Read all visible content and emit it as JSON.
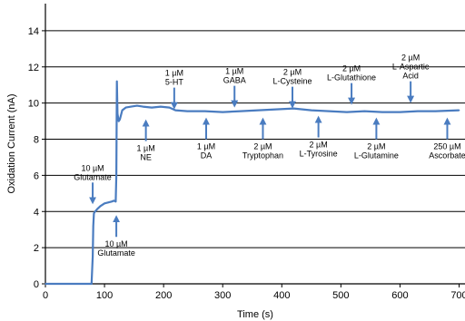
{
  "chart_data": {
    "type": "line",
    "title": "",
    "xlabel": "Time (s)",
    "ylabel": "Oxidation Current (nA)",
    "xlim": [
      0,
      710
    ],
    "ylim": [
      0,
      15.5
    ],
    "xticks": [
      0,
      100,
      200,
      300,
      400,
      500,
      600,
      700
    ],
    "xtick_labels": [
      "0",
      "100",
      "200",
      "300",
      "400",
      "500",
      "600",
      "700"
    ],
    "yticks": [
      0,
      2,
      4,
      6,
      8,
      10,
      12,
      14
    ],
    "ytick_labels": [
      "0",
      "2",
      "4",
      "6",
      "8",
      "10",
      "12",
      "14"
    ],
    "grid": "horizontal",
    "series": [
      {
        "color": "#4a7cc0",
        "x": [
          0,
          78,
          80,
          81,
          82,
          84,
          88,
          93,
          100,
          106,
          112,
          116,
          119,
          120,
          121,
          122,
          124,
          126,
          130,
          136,
          145,
          155,
          165,
          180,
          195,
          210,
          220,
          240,
          270,
          300,
          330,
          360,
          390,
          420,
          450,
          480,
          510,
          540,
          570,
          600,
          630,
          660,
          700
        ],
        "y": [
          0,
          0,
          1.5,
          3.2,
          3.9,
          4.0,
          4.15,
          4.3,
          4.45,
          4.5,
          4.55,
          4.6,
          4.55,
          6.0,
          11.2,
          9.4,
          9.0,
          9.1,
          9.6,
          9.75,
          9.8,
          9.85,
          9.8,
          9.75,
          9.8,
          9.75,
          9.6,
          9.55,
          9.55,
          9.5,
          9.55,
          9.6,
          9.65,
          9.7,
          9.6,
          9.55,
          9.5,
          9.55,
          9.5,
          9.5,
          9.55,
          9.55,
          9.6
        ]
      }
    ],
    "annotations": [
      {
        "lines": [
          "10 µM",
          "Glutamate"
        ],
        "x": 80,
        "y": 4.5,
        "dir": "down"
      },
      {
        "lines": [
          "10 µM",
          "Glutamate"
        ],
        "x": 120,
        "y": 3.7,
        "dir": "up"
      },
      {
        "lines": [
          "1 µM",
          "NE"
        ],
        "x": 170,
        "y": 9.0,
        "dir": "up"
      },
      {
        "lines": [
          "1 µM",
          "5-HT"
        ],
        "x": 218,
        "y": 9.75,
        "dir": "down"
      },
      {
        "lines": [
          "1 µM",
          "DA"
        ],
        "x": 272,
        "y": 9.1,
        "dir": "up"
      },
      {
        "lines": [
          "1 µM",
          "GABA"
        ],
        "x": 320,
        "y": 9.85,
        "dir": "down"
      },
      {
        "lines": [
          "2 µM",
          "Tryptophan"
        ],
        "x": 368,
        "y": 9.1,
        "dir": "up"
      },
      {
        "lines": [
          "2 µM",
          "L-Cysteine"
        ],
        "x": 418,
        "y": 9.8,
        "dir": "down"
      },
      {
        "lines": [
          "2 µM",
          "L-Tyrosine"
        ],
        "x": 462,
        "y": 9.2,
        "dir": "up"
      },
      {
        "lines": [
          "2 µM",
          "L-Glutathione"
        ],
        "x": 518,
        "y": 10.0,
        "dir": "down"
      },
      {
        "lines": [
          "2 µM",
          "L-Glutamine"
        ],
        "x": 560,
        "y": 9.1,
        "dir": "up"
      },
      {
        "lines": [
          "2 µM",
          "L-Aspartic",
          "Acid"
        ],
        "x": 618,
        "y": 10.1,
        "dir": "down"
      },
      {
        "lines": [
          "250 µM",
          "Ascorbate"
        ],
        "x": 680,
        "y": 9.1,
        "dir": "up"
      }
    ]
  }
}
